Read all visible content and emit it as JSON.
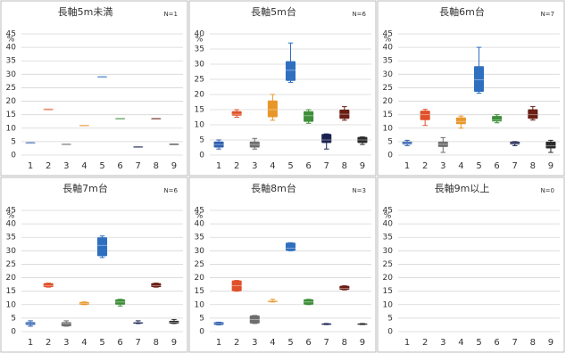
{
  "chart_data": [
    {
      "type": "box",
      "title": "長軸5m未満",
      "note": "N=1",
      "ylabel": "%",
      "ylim": [
        0,
        45
      ],
      "yticks": [
        0,
        5,
        10,
        15,
        20,
        25,
        30,
        35,
        40,
        45
      ],
      "grid": true,
      "categories": [
        "1",
        "2",
        "3",
        "4",
        "5",
        "6",
        "7",
        "8",
        "9"
      ],
      "colors": [
        "#2f5fae",
        "#e0502a",
        "#6e6e6e",
        "#e8962a",
        "#2f6fc0",
        "#3f8f3a",
        "#1a2350",
        "#6a1e14",
        "#2a2a2a"
      ],
      "boxes": [
        {
          "low": 4.5,
          "q1": 4.5,
          "median": 4.5,
          "q3": 4.5,
          "high": 4.5
        },
        {
          "low": 17,
          "q1": 17,
          "median": 17,
          "q3": 17,
          "high": 17
        },
        {
          "low": 4,
          "q1": 4,
          "median": 4,
          "q3": 4,
          "high": 4
        },
        {
          "low": 11,
          "q1": 11,
          "median": 11,
          "q3": 11,
          "high": 11
        },
        {
          "low": 29,
          "q1": 29,
          "median": 29,
          "q3": 29,
          "high": 29
        },
        {
          "low": 13.5,
          "q1": 13.5,
          "median": 13.5,
          "q3": 13.5,
          "high": 13.5
        },
        {
          "low": 3,
          "q1": 3,
          "median": 3,
          "q3": 3,
          "high": 3
        },
        {
          "low": 13.5,
          "q1": 13.5,
          "median": 13.5,
          "q3": 13.5,
          "high": 13.5
        },
        {
          "low": 4,
          "q1": 4,
          "median": 4,
          "q3": 4,
          "high": 4
        }
      ]
    },
    {
      "type": "box",
      "title": "長軸5m台",
      "note": "N=6",
      "ylabel": "%",
      "ylim": [
        0,
        40
      ],
      "yticks": [
        0,
        5,
        10,
        15,
        20,
        25,
        30,
        35,
        40
      ],
      "grid": true,
      "categories": [
        "1",
        "2",
        "3",
        "4",
        "5",
        "6",
        "7",
        "8",
        "9"
      ],
      "colors": [
        "#2f5fae",
        "#e0502a",
        "#6e6e6e",
        "#e8962a",
        "#2f6fc0",
        "#3f8f3a",
        "#1a2350",
        "#6a1e14",
        "#2a2a2a"
      ],
      "boxes": [
        {
          "low": 2,
          "q1": 2.5,
          "median": 3.5,
          "q3": 4.5,
          "high": 5
        },
        {
          "low": 12.5,
          "q1": 13,
          "median": 13.5,
          "q3": 14.5,
          "high": 15
        },
        {
          "low": 2,
          "q1": 2.5,
          "median": 3.5,
          "q3": 4.5,
          "high": 5.5
        },
        {
          "low": 11.5,
          "q1": 12.5,
          "median": 15,
          "q3": 18,
          "high": 20
        },
        {
          "low": 24,
          "q1": 24.5,
          "median": 28,
          "q3": 31,
          "high": 37
        },
        {
          "low": 10.5,
          "q1": 11,
          "median": 13,
          "q3": 14.5,
          "high": 15
        },
        {
          "low": 2,
          "q1": 4,
          "median": 5,
          "q3": 7,
          "high": 7
        },
        {
          "low": 11.5,
          "q1": 12,
          "median": 13.5,
          "q3": 15,
          "high": 16
        },
        {
          "low": 3.5,
          "q1": 4,
          "median": 5,
          "q3": 6,
          "high": 6
        }
      ]
    },
    {
      "type": "box",
      "title": "長軸6m台",
      "note": "N=7",
      "ylabel": "%",
      "ylim": [
        0,
        45
      ],
      "yticks": [
        0,
        5,
        10,
        15,
        20,
        25,
        30,
        35,
        40,
        45
      ],
      "grid": true,
      "categories": [
        "1",
        "2",
        "3",
        "4",
        "5",
        "6",
        "7",
        "8",
        "9"
      ],
      "colors": [
        "#2f5fae",
        "#e0502a",
        "#6e6e6e",
        "#e8962a",
        "#2f6fc0",
        "#3f8f3a",
        "#1a2350",
        "#6a1e14",
        "#2a2a2a"
      ],
      "boxes": [
        {
          "low": 3.5,
          "q1": 4,
          "median": 4.5,
          "q3": 5,
          "high": 5.5
        },
        {
          "low": 11,
          "q1": 13,
          "median": 15,
          "q3": 16.5,
          "high": 17
        },
        {
          "low": 1,
          "q1": 3,
          "median": 4,
          "q3": 5,
          "high": 6.5
        },
        {
          "low": 10,
          "q1": 11.5,
          "median": 12.5,
          "q3": 14,
          "high": 14.5
        },
        {
          "low": 23,
          "q1": 23.5,
          "median": 28,
          "q3": 33,
          "high": 40
        },
        {
          "low": 12,
          "q1": 12.5,
          "median": 13,
          "q3": 14.5,
          "high": 15
        },
        {
          "low": 3.5,
          "q1": 4,
          "median": 4.5,
          "q3": 5,
          "high": 5
        },
        {
          "low": 13,
          "q1": 13.5,
          "median": 15,
          "q3": 17,
          "high": 18
        },
        {
          "low": 1,
          "q1": 2.5,
          "median": 3.5,
          "q3": 5,
          "high": 5.5
        }
      ]
    },
    {
      "type": "box",
      "title": "長軸7m台",
      "note": "N=6",
      "ylabel": "%",
      "ylim": [
        0,
        45
      ],
      "yticks": [
        0,
        5,
        10,
        15,
        20,
        25,
        30,
        35,
        40,
        45
      ],
      "grid": true,
      "categories": [
        "1",
        "2",
        "3",
        "4",
        "5",
        "6",
        "7",
        "8",
        "9"
      ],
      "colors": [
        "#2f5fae",
        "#e0502a",
        "#6e6e6e",
        "#e8962a",
        "#2f6fc0",
        "#3f8f3a",
        "#1a2350",
        "#6a1e14",
        "#2a2a2a"
      ],
      "boxes": [
        {
          "low": 2,
          "q1": 2.5,
          "median": 3,
          "q3": 3.5,
          "high": 4
        },
        {
          "low": 16.5,
          "q1": 16.5,
          "median": 17,
          "q3": 18,
          "high": 18
        },
        {
          "low": 2,
          "q1": 2,
          "median": 3,
          "q3": 3.5,
          "high": 4
        },
        {
          "low": 10,
          "q1": 10,
          "median": 10.5,
          "q3": 11,
          "high": 11
        },
        {
          "low": 27.5,
          "q1": 28,
          "median": 32,
          "q3": 35,
          "high": 35.5
        },
        {
          "low": 9.5,
          "q1": 10,
          "median": 11,
          "q3": 12,
          "high": 12
        },
        {
          "low": 3,
          "q1": 3,
          "median": 3.5,
          "q3": 3.5,
          "high": 4
        },
        {
          "low": 16.5,
          "q1": 16.5,
          "median": 17,
          "q3": 18,
          "high": 18
        },
        {
          "low": 3,
          "q1": 3,
          "median": 3.5,
          "q3": 4,
          "high": 4.5
        }
      ]
    },
    {
      "type": "box",
      "title": "長軸8m台",
      "note": "N=3",
      "ylabel": "%",
      "ylim": [
        0,
        45
      ],
      "yticks": [
        0,
        5,
        10,
        15,
        20,
        25,
        30,
        35,
        40,
        45
      ],
      "grid": true,
      "categories": [
        "1",
        "2",
        "3",
        "4",
        "5",
        "6",
        "7",
        "8",
        "9"
      ],
      "colors": [
        "#2f5fae",
        "#e0502a",
        "#6e6e6e",
        "#e8962a",
        "#2f6fc0",
        "#3f8f3a",
        "#1a2350",
        "#6a1e14",
        "#2a2a2a"
      ],
      "boxes": [
        {
          "low": 2.5,
          "q1": 2.5,
          "median": 3,
          "q3": 3.5,
          "high": 3.5
        },
        {
          "low": 15,
          "q1": 15,
          "median": 17,
          "q3": 19,
          "high": 19
        },
        {
          "low": 3,
          "q1": 3,
          "median": 4.5,
          "q3": 6,
          "high": 6
        },
        {
          "low": 11,
          "q1": 11,
          "median": 11.5,
          "q3": 11.5,
          "high": 12
        },
        {
          "low": 30,
          "q1": 30,
          "median": 31,
          "q3": 33,
          "high": 33
        },
        {
          "low": 10,
          "q1": 10,
          "median": 11,
          "q3": 12,
          "high": 12
        },
        {
          "low": 2.5,
          "q1": 2.5,
          "median": 2.5,
          "q3": 3,
          "high": 3
        },
        {
          "low": 15.5,
          "q1": 15.5,
          "median": 16,
          "q3": 17,
          "high": 17
        },
        {
          "low": 2.5,
          "q1": 2.5,
          "median": 2.5,
          "q3": 3,
          "high": 3
        }
      ]
    },
    {
      "type": "box",
      "title": "長軸9m以上",
      "note": "N=0",
      "ylabel": "%",
      "ylim": [
        0,
        45
      ],
      "yticks": [
        0,
        5,
        10,
        15,
        20,
        25,
        30,
        35,
        40,
        45
      ],
      "grid": true,
      "categories": [
        "1",
        "2",
        "3",
        "4",
        "5",
        "6",
        "7",
        "8",
        "9"
      ],
      "colors": [
        "#2f5fae",
        "#e0502a",
        "#6e6e6e",
        "#e8962a",
        "#2f6fc0",
        "#3f8f3a",
        "#1a2350",
        "#6a1e14",
        "#2a2a2a"
      ],
      "boxes": [
        null,
        null,
        null,
        null,
        null,
        null,
        null,
        null,
        null
      ]
    }
  ]
}
